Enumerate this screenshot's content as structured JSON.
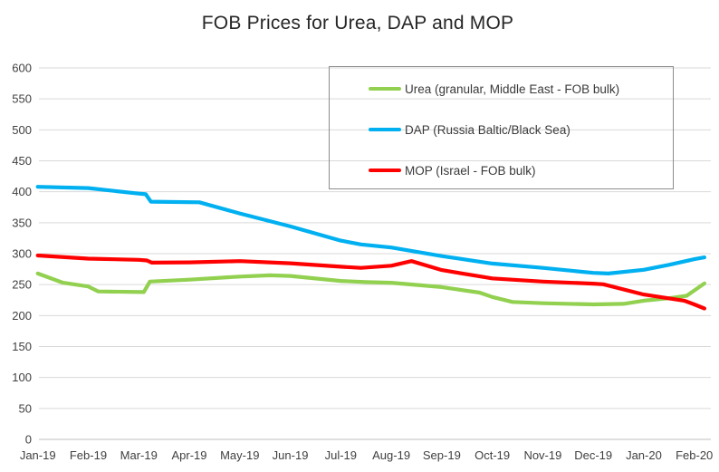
{
  "title": "FOB Prices for Urea, DAP and MOP",
  "colors": {
    "background": "#FFFFFF",
    "gridline": "#D9D9D9",
    "axis_line": "#BFBFBF",
    "tick_label": "#404040",
    "title_text": "#262626",
    "legend_border": "#8C8C8C",
    "urea": "#92D050",
    "dap": "#00B0F0",
    "mop": "#FF0000"
  },
  "chart_data": {
    "type": "line",
    "title": "FOB Prices for Urea, DAP and MOP",
    "xlabel": "",
    "ylabel": "",
    "ylim": [
      0,
      600
    ],
    "y_step": 50,
    "grid": true,
    "legend_position": "top-right box, transparent fill, gray border",
    "x_note": "weekly price series labeled at monthly ticks; lines extend about one week past Feb-20",
    "categories": [
      "Jan-19",
      "Feb-19",
      "Mar-19",
      "Apr-19",
      "May-19",
      "Jun-19",
      "Jul-19",
      "Aug-19",
      "Sep-19",
      "Oct-19",
      "Nov-19",
      "Dec-19",
      "Jan-20",
      "Feb-20"
    ],
    "series": [
      {
        "id": "urea",
        "name": "Urea (granular, Middle East - FOB bulk)",
        "color": "#92D050",
        "monthly_values": [
          268,
          247,
          238,
          258,
          263,
          264,
          256,
          253,
          246,
          230,
          220,
          218,
          224,
          246
        ],
        "detail_points": [
          [
            0,
            268
          ],
          [
            0.5,
            253
          ],
          [
            1,
            247
          ],
          [
            1.2,
            239
          ],
          [
            2.1,
            238
          ],
          [
            2.22,
            255
          ],
          [
            3,
            258
          ],
          [
            4,
            263
          ],
          [
            4.6,
            265
          ],
          [
            5,
            264
          ],
          [
            6,
            256
          ],
          [
            6.5,
            254
          ],
          [
            7,
            253
          ],
          [
            8,
            246
          ],
          [
            8.75,
            237
          ],
          [
            9,
            230
          ],
          [
            9.4,
            222
          ],
          [
            10,
            220
          ],
          [
            11,
            218
          ],
          [
            11.6,
            219
          ],
          [
            12,
            224
          ],
          [
            12.5,
            228
          ],
          [
            12.85,
            232
          ],
          [
            13.2,
            252
          ]
        ]
      },
      {
        "id": "dap",
        "name": "DAP (Russia Baltic/Black Sea)",
        "color": "#00B0F0",
        "monthly_values": [
          408,
          406,
          396,
          383,
          365,
          344,
          321,
          310,
          296,
          284,
          277,
          269,
          274,
          291
        ],
        "detail_points": [
          [
            0,
            408
          ],
          [
            1,
            406
          ],
          [
            2,
            397
          ],
          [
            2.14,
            396
          ],
          [
            2.24,
            384
          ],
          [
            3.2,
            383
          ],
          [
            4,
            365
          ],
          [
            5,
            344
          ],
          [
            6,
            321
          ],
          [
            6.4,
            315
          ],
          [
            7,
            310
          ],
          [
            8,
            296
          ],
          [
            9,
            284
          ],
          [
            10,
            277
          ],
          [
            11,
            269
          ],
          [
            11.3,
            268
          ],
          [
            12,
            274
          ],
          [
            12.5,
            282
          ],
          [
            13,
            291
          ],
          [
            13.2,
            294
          ]
        ]
      },
      {
        "id": "mop",
        "name": "MOP (Israel - FOB bulk)",
        "color": "#FF0000",
        "monthly_values": [
          297,
          292,
          289,
          286,
          288,
          284,
          279,
          280,
          273,
          260,
          255,
          251,
          234,
          218
        ],
        "detail_points": [
          [
            0,
            297
          ],
          [
            1,
            292
          ],
          [
            2,
            290
          ],
          [
            2.16,
            289
          ],
          [
            2.26,
            285.5
          ],
          [
            3,
            286
          ],
          [
            4,
            288
          ],
          [
            5,
            284.5
          ],
          [
            6,
            279
          ],
          [
            6.4,
            277
          ],
          [
            7,
            280.5
          ],
          [
            7.4,
            288
          ],
          [
            8,
            273.5
          ],
          [
            8.7,
            264
          ],
          [
            9,
            260
          ],
          [
            10,
            255
          ],
          [
            11,
            251.5
          ],
          [
            11.2,
            250.5
          ],
          [
            12,
            234
          ],
          [
            12.8,
            224
          ],
          [
            13,
            218
          ],
          [
            13.2,
            211.5
          ]
        ]
      }
    ]
  }
}
